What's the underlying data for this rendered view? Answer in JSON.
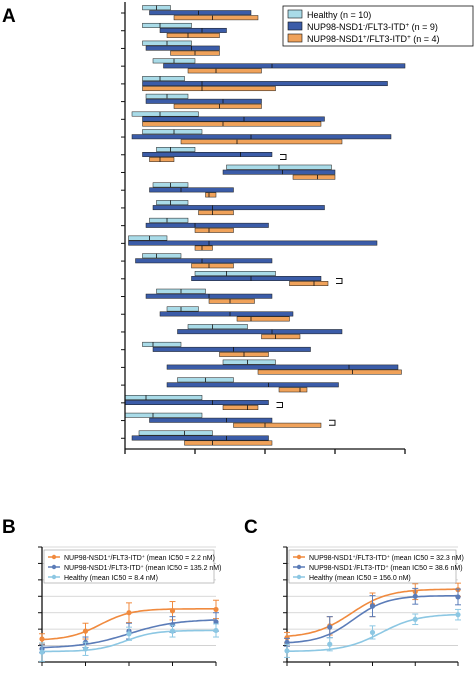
{
  "colors": {
    "healthy": "#a9dbe8",
    "nup_flt3_itd_neg": "#3b5ca8",
    "nup_flt3_itd_pos": "#f0a25a",
    "line_healthy": "#8cc7e3",
    "line_itd_neg": "#5b7cb8",
    "line_itd_pos": "#f08a3e",
    "grid": "#cccccc",
    "axis": "#111111"
  },
  "panel_labels": {
    "a": "A",
    "b": "B",
    "c": "C"
  },
  "chart_data": [
    {
      "type": "bar",
      "orientation": "horizontal",
      "subtype": "floating-range-with-median",
      "xlabel": "DSS",
      "xlim": [
        0,
        40
      ],
      "xticks": [
        "0",
        "10",
        "20",
        "30",
        "40"
      ],
      "legend": {
        "position": "top-right",
        "entries": [
          {
            "key": "healthy",
            "sup": "",
            "label": "Healthy (n = 10)"
          },
          {
            "key": "itd_neg",
            "label": "NUP98-NSD1-/FLT3-ITD+ (n = 9)"
          },
          {
            "key": "itd_pos",
            "label": "NUP98-NSD1+/FLT3-ITD+ (n = 4)"
          }
        ]
      },
      "series_names": [
        "Healthy (n = 10)",
        "NUP98-NSD1-/FLT3-ITD+ (n = 9)",
        "NUP98-NSD1+/FLT3-ITD+ (n = 4)"
      ],
      "categories": [
        {
          "drug": "Entinostat",
          "healthy": [
            2.5,
            6.5,
            4.5
          ],
          "itd_neg": [
            3.5,
            18.0,
            10.5
          ],
          "itd_pos": [
            7.0,
            19.0,
            12.5
          ],
          "sig": ""
        },
        {
          "drug": "Axitinib",
          "healthy": [
            2.5,
            9.5,
            5.0
          ],
          "itd_neg": [
            5.0,
            14.5,
            11.0
          ],
          "itd_pos": [
            6.0,
            13.5,
            9.0
          ],
          "sig": ""
        },
        {
          "drug": "Linsitinib",
          "healthy": [
            2.5,
            9.5,
            6.0
          ],
          "itd_neg": [
            3.0,
            13.5,
            9.5
          ],
          "itd_pos": [
            6.5,
            13.5,
            10.0
          ],
          "sig": ""
        },
        {
          "drug": "AZD7762",
          "healthy": [
            4.0,
            10.0,
            7.0
          ],
          "itd_neg": [
            5.5,
            40.0,
            21.0
          ],
          "itd_pos": [
            9.0,
            19.5,
            13.0
          ],
          "sig": ""
        },
        {
          "drug": "Foretinib",
          "healthy": [
            2.5,
            8.5,
            5.0
          ],
          "itd_neg": [
            2.5,
            37.5,
            11.0
          ],
          "itd_pos": [
            2.5,
            21.5,
            11.0
          ],
          "sig": ""
        },
        {
          "drug": "Pimasertib",
          "healthy": [
            3.0,
            9.0,
            6.0
          ],
          "itd_neg": [
            3.0,
            19.5,
            14.0
          ],
          "itd_pos": [
            7.0,
            19.5,
            13.5
          ],
          "sig": ""
        },
        {
          "drug": "Idelalisib",
          "healthy": [
            1.0,
            10.5,
            5.0
          ],
          "itd_neg": [
            2.5,
            28.5,
            17.0
          ],
          "itd_pos": [
            2.5,
            28.0,
            14.0
          ],
          "sig": ""
        },
        {
          "drug": "AZD8055",
          "healthy": [
            2.5,
            11.0,
            7.0
          ],
          "itd_neg": [
            1.0,
            38.0,
            18.0
          ],
          "itd_pos": [
            8.0,
            31.0,
            16.0
          ],
          "sig": ""
        },
        {
          "drug": "Mitoxantrone",
          "healthy": [
            4.5,
            10.0,
            6.5
          ],
          "itd_neg": [
            2.5,
            21.0,
            16.5
          ],
          "itd_pos": [
            3.5,
            7.0,
            5.0
          ],
          "sig": "**"
        },
        {
          "drug": "Panobinostat",
          "healthy": [
            14.5,
            29.5,
            22.0
          ],
          "itd_neg": [
            14.0,
            30.0,
            22.5
          ],
          "itd_pos": [
            24.0,
            30.0,
            27.5
          ],
          "sig": ""
        },
        {
          "drug": "Danusertib",
          "healthy": [
            4.0,
            9.0,
            6.5
          ],
          "itd_neg": [
            3.5,
            15.5,
            8.0
          ],
          "itd_pos": [
            11.5,
            13.0,
            12.0
          ],
          "sig": ""
        },
        {
          "drug": "Pictilisib",
          "healthy": [
            4.5,
            9.0,
            6.5
          ],
          "itd_neg": [
            4.0,
            28.5,
            12.5
          ],
          "itd_pos": [
            10.5,
            15.5,
            12.5
          ],
          "sig": ""
        },
        {
          "drug": "Vorinostat",
          "healthy": [
            3.5,
            9.0,
            6.0
          ],
          "itd_neg": [
            3.0,
            20.5,
            10.0
          ],
          "itd_pos": [
            10.0,
            15.5,
            12.0
          ],
          "sig": ""
        },
        {
          "drug": "Everolimus",
          "healthy": [
            0.5,
            6.0,
            3.5
          ],
          "itd_neg": [
            0.5,
            36.0,
            12.0
          ],
          "itd_pos": [
            10.0,
            12.5,
            11.0
          ],
          "sig": ""
        },
        {
          "drug": "OSI-027",
          "healthy": [
            2.5,
            8.0,
            4.5
          ],
          "itd_neg": [
            1.5,
            21.0,
            11.0
          ],
          "itd_pos": [
            9.5,
            15.5,
            12.0
          ],
          "sig": ""
        },
        {
          "drug": "Belinostat",
          "healthy": [
            10.0,
            21.5,
            14.5
          ],
          "itd_neg": [
            9.5,
            28.0,
            18.0
          ],
          "itd_pos": [
            23.5,
            29.0,
            27.0
          ],
          "sig": "*"
        },
        {
          "drug": "Doramapimod",
          "healthy": [
            4.5,
            11.5,
            8.0
          ],
          "itd_neg": [
            3.0,
            21.0,
            12.0
          ],
          "itd_pos": [
            12.0,
            18.5,
            15.0
          ],
          "sig": ""
        },
        {
          "drug": "Tanespimycin",
          "healthy": [
            6.0,
            10.5,
            8.0
          ],
          "itd_neg": [
            5.0,
            24.0,
            15.0
          ],
          "itd_pos": [
            16.0,
            23.5,
            18.0
          ],
          "sig": ""
        },
        {
          "drug": "Luminespib",
          "healthy": [
            9.0,
            17.5,
            12.5
          ],
          "itd_neg": [
            7.5,
            31.0,
            21.0
          ],
          "itd_pos": [
            19.5,
            25.0,
            21.5
          ],
          "sig": ""
        },
        {
          "drug": "Lestaurtinib",
          "healthy": [
            2.5,
            8.0,
            4.0
          ],
          "itd_neg": [
            4.0,
            26.5,
            15.5
          ],
          "itd_pos": [
            13.5,
            20.5,
            17.0
          ],
          "sig": ""
        },
        {
          "drug": "Navitoclax",
          "healthy": [
            14.0,
            21.5,
            17.5
          ],
          "itd_neg": [
            6.0,
            39.0,
            32.0
          ],
          "itd_pos": [
            19.0,
            39.5,
            32.5
          ],
          "sig": ""
        },
        {
          "drug": "BIIB021",
          "healthy": [
            7.5,
            15.5,
            11.5
          ],
          "itd_neg": [
            6.0,
            30.5,
            20.5
          ],
          "itd_pos": [
            22.0,
            26.0,
            25.0
          ],
          "sig": ""
        },
        {
          "drug": "Dasatinib",
          "healthy": [
            0.0,
            11.0,
            3.0
          ],
          "itd_neg": [
            0.0,
            20.5,
            12.5
          ],
          "itd_pos": [
            14.0,
            19.0,
            17.5
          ],
          "sig": "*"
        },
        {
          "drug": "Tivozanib",
          "healthy": [
            0.0,
            11.0,
            4.0
          ],
          "itd_neg": [
            3.5,
            21.0,
            14.5
          ],
          "itd_pos": [
            15.5,
            28.0,
            20.0
          ],
          "sig": "*"
        },
        {
          "drug": "Refametinib",
          "healthy": [
            2.0,
            12.5,
            8.5
          ],
          "itd_neg": [
            1.0,
            20.5,
            14.5
          ],
          "itd_pos": [
            8.5,
            21.0,
            12.5
          ],
          "sig": ""
        }
      ]
    },
    {
      "type": "line",
      "panel": "B",
      "xlabel": "[Dasatinib], nM",
      "ylabel": "% inhibition",
      "x_scale": "log",
      "xlim": [
        0.1,
        1000
      ],
      "ylim": [
        -25,
        150
      ],
      "xticks": [
        "0.1",
        "1",
        "10",
        "100",
        "1000"
      ],
      "yticks": [
        "-25",
        "0",
        "25",
        "50",
        "75",
        "100",
        "125",
        "150"
      ],
      "grid": true,
      "legend": {
        "position": "top-left",
        "entries": [
          {
            "key": "itd_pos",
            "label": "NUP98-NSD1+/FLT3-ITD+ (mean IC50 = 2.2 nM)"
          },
          {
            "key": "itd_neg",
            "label": "NUP98-NSD1-/FLT3-ITD+ (mean IC50 = 135.2 nM)"
          },
          {
            "key": "healthy",
            "label": "Healthy (mean IC50 = 8.4 nM)"
          }
        ]
      },
      "x": [
        0.1,
        1,
        10,
        100,
        1000
      ],
      "series": [
        {
          "key": "itd_pos",
          "name": "NUP98-NSD1+/FLT3-ITD+ (mean IC50 = 2.2 nM)",
          "values": [
            10,
            22,
            50,
            53,
            55
          ],
          "err": [
            8,
            12,
            15,
            14,
            14
          ],
          "fit": {
            "bottom": 8,
            "top": 56,
            "logec50": 0.34,
            "hill": 1.2
          }
        },
        {
          "key": "itd_neg",
          "name": "NUP98-NSD1-/FLT3-ITD+ (mean IC50 = 135.2 nM)",
          "values": [
            -5,
            5,
            22,
            32,
            36
          ],
          "err": [
            6,
            8,
            12,
            12,
            14
          ],
          "fit": {
            "bottom": -4,
            "top": 40,
            "logec50": 1.0,
            "hill": 0.8
          }
        },
        {
          "key": "healthy",
          "name": "Healthy (mean IC50 = 8.4 nM)",
          "values": [
            -10,
            -5,
            18,
            22,
            23
          ],
          "err": [
            14,
            10,
            10,
            9,
            10
          ],
          "fit": {
            "bottom": -9,
            "top": 23,
            "logec50": 0.92,
            "hill": 1.3
          }
        }
      ]
    },
    {
      "type": "line",
      "panel": "C",
      "xlabel": "[Navitoclax], nM",
      "ylabel": "% inhibition",
      "x_scale": "log",
      "xlim": [
        1,
        10000
      ],
      "ylim": [
        -25,
        150
      ],
      "xticks": [
        "1",
        "10",
        "100",
        "1000",
        "10000"
      ],
      "yticks": [
        "-25",
        "0",
        "25",
        "50",
        "75",
        "100",
        "125",
        "150"
      ],
      "grid": true,
      "legend": {
        "position": "top-left",
        "entries": [
          {
            "key": "itd_pos",
            "label": "NUP98-NSD1+/FLT3-ITD+ (mean IC50 = 32.3 nM)"
          },
          {
            "key": "itd_neg",
            "label": "NUP98-NSD1-/FLT3-ITD+ (mean IC50 = 38.6 nM)"
          },
          {
            "key": "healthy",
            "label": "Healthy (mean IC50 = 156.0 nM)"
          }
        ]
      },
      "x": [
        1,
        10,
        100,
        1000,
        10000
      ],
      "series": [
        {
          "key": "itd_pos",
          "name": "NUP98-NSD1+/FLT3-ITD+ (mean IC50 = 32.3 nM)",
          "values": [
            12,
            30,
            62,
            82,
            85
          ],
          "err": [
            8,
            14,
            18,
            12,
            10
          ],
          "fit": {
            "bottom": 12,
            "top": 86,
            "logec50": 1.5,
            "hill": 1.0
          }
        },
        {
          "key": "itd_neg",
          "name": "NUP98-NSD1-/FLT3-ITD+ (mean IC50 = 38.6 nM)",
          "values": [
            5,
            28,
            60,
            75,
            74
          ],
          "err": [
            6,
            16,
            16,
            12,
            12
          ],
          "fit": {
            "bottom": 3,
            "top": 76,
            "logec50": 1.55,
            "hill": 1.1
          }
        },
        {
          "key": "healthy",
          "name": "Healthy (mean IC50 = 156.0 nM)",
          "values": [
            -8,
            2,
            20,
            40,
            47
          ],
          "err": [
            10,
            10,
            10,
            8,
            8
          ],
          "fit": {
            "bottom": -9,
            "top": 48,
            "logec50": 2.2,
            "hill": 1.0
          }
        }
      ]
    }
  ]
}
